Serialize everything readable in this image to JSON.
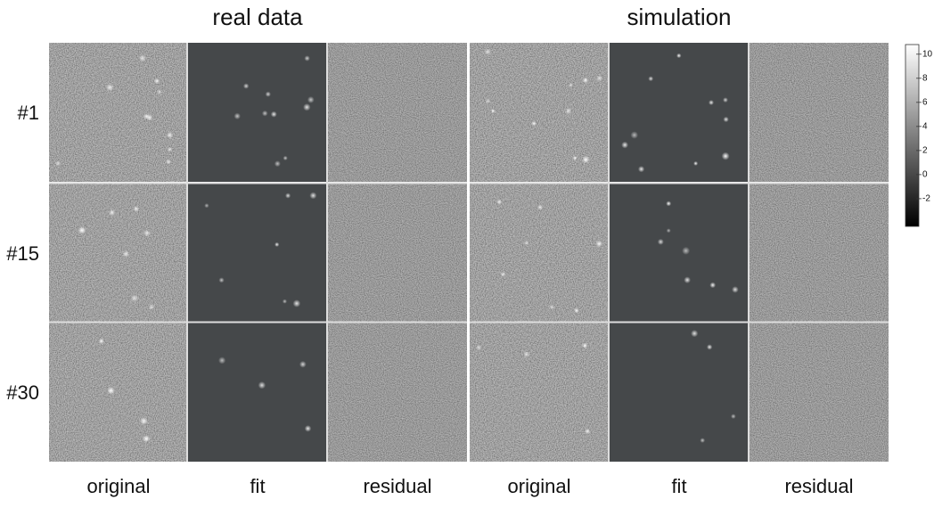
{
  "column_groups": [
    "real data",
    "simulation"
  ],
  "rows": [
    "#1",
    "#15",
    "#30"
  ],
  "columns": [
    "original",
    "fit",
    "residual",
    "original",
    "fit",
    "residual"
  ],
  "colorbar": {
    "ticks": [
      10,
      8,
      6,
      4,
      2,
      0,
      -2
    ],
    "range": [
      -4.3,
      10.8
    ]
  }
}
